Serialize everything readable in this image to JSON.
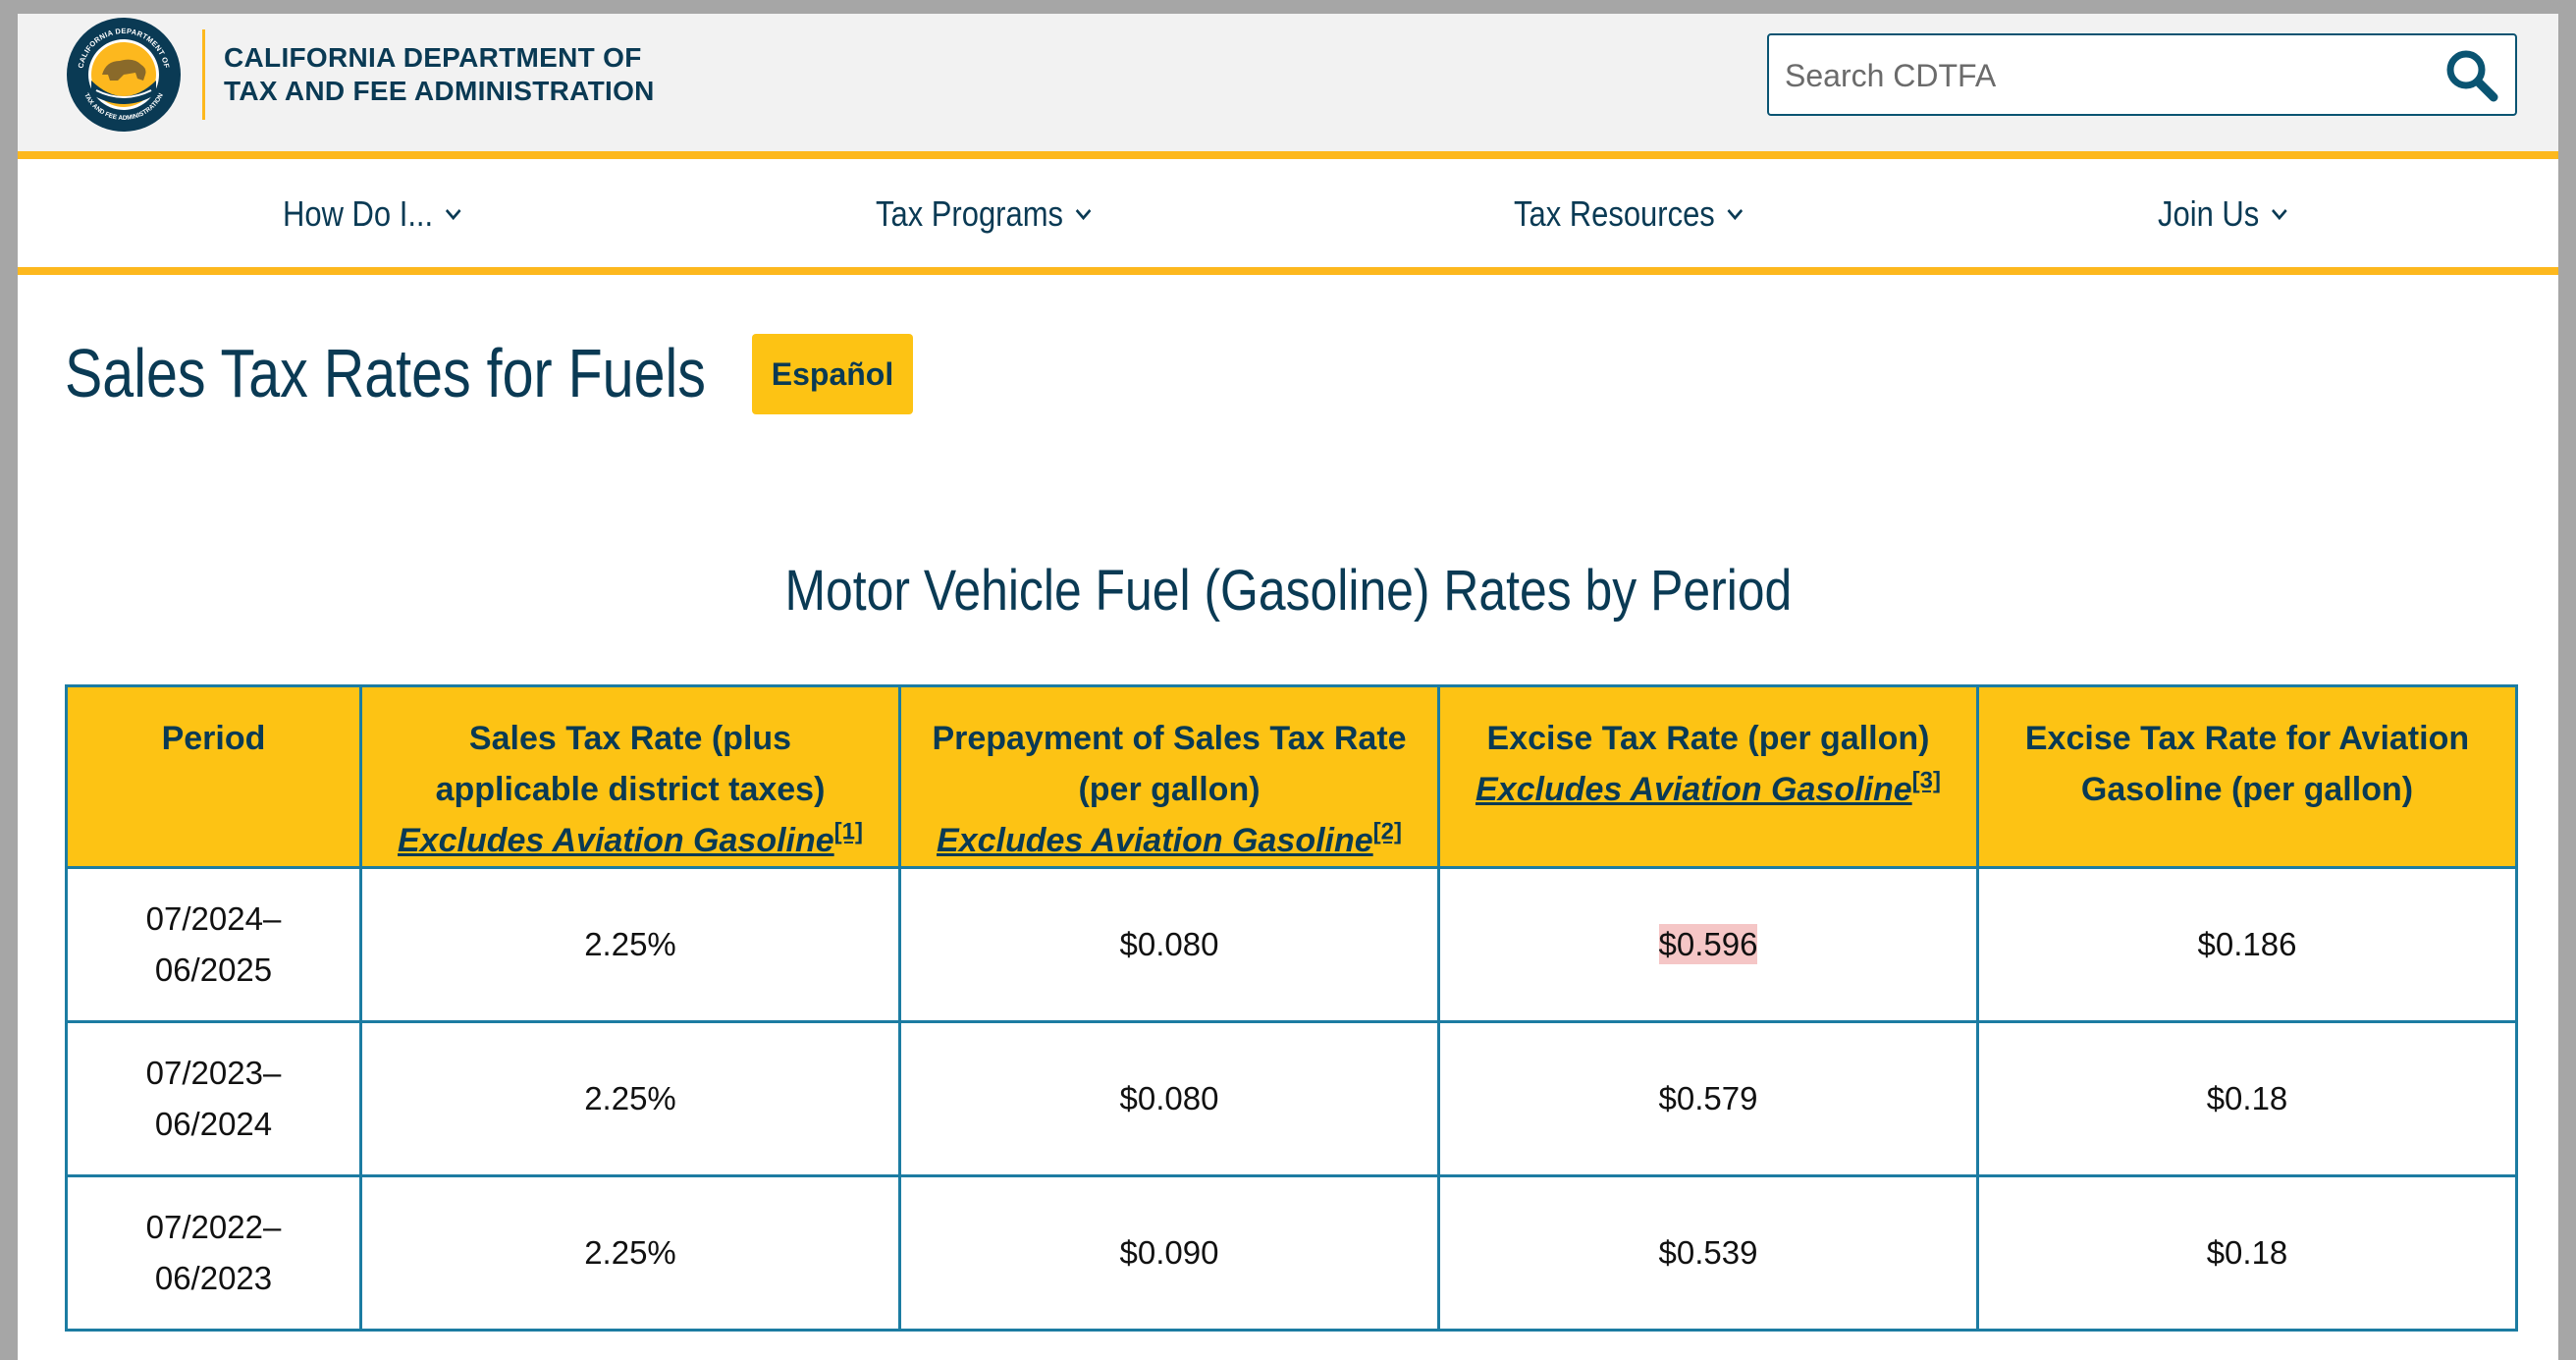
{
  "header": {
    "org_line1": "CALIFORNIA DEPARTMENT OF",
    "org_line2": "TAX AND FEE ADMINISTRATION",
    "seal_top_text": "CALIFORNIA DEPARTMENT OF",
    "seal_bottom_text": "TAX AND FEE ADMINISTRATION",
    "search_placeholder": "Search CDTFA",
    "search_icon": "search-icon"
  },
  "nav": {
    "items": [
      {
        "label": "How Do I..."
      },
      {
        "label": "Tax Programs"
      },
      {
        "label": "Tax Resources"
      },
      {
        "label": "Join Us"
      }
    ]
  },
  "page": {
    "title": "Sales Tax Rates for Fuels",
    "language_button": "Español",
    "section_heading": "Motor Vehicle Fuel (Gasoline) Rates by Period"
  },
  "table": {
    "columns": [
      {
        "label": "Period",
        "link": "",
        "footnote": ""
      },
      {
        "label": "Sales Tax Rate (plus applicable district taxes)",
        "link": "Excludes Aviation Gasoline",
        "footnote": "[1]"
      },
      {
        "label": "Prepayment of Sales Tax Rate (per gallon)",
        "link": "Excludes Aviation Gasoline",
        "footnote": "[2]"
      },
      {
        "label": "Excise Tax Rate (per gallon)",
        "link": "Excludes Aviation Gasoline",
        "footnote": "[3]"
      },
      {
        "label": "Excise Tax Rate for Aviation Gasoline (per gallon)",
        "link": "",
        "footnote": ""
      }
    ],
    "rows": [
      {
        "period_start": "07/2024–",
        "period_end": "06/2025",
        "sales_tax": "2.25%",
        "prepayment": "$0.080",
        "excise": "$0.596",
        "aviation": "$0.186"
      },
      {
        "period_start": "07/2023–",
        "period_end": "06/2024",
        "sales_tax": "2.25%",
        "prepayment": "$0.080",
        "excise": "$0.579",
        "aviation": "$0.18"
      },
      {
        "period_start": "07/2022–",
        "period_end": "06/2023",
        "sales_tax": "2.25%",
        "prepayment": "$0.090",
        "excise": "$0.539",
        "aviation": "$0.18"
      }
    ]
  },
  "colors": {
    "brand_navy": "#0a3a54",
    "accent_gold": "#fdc314",
    "table_border": "#1c7ca2",
    "highlight": "#f5c6c6"
  }
}
